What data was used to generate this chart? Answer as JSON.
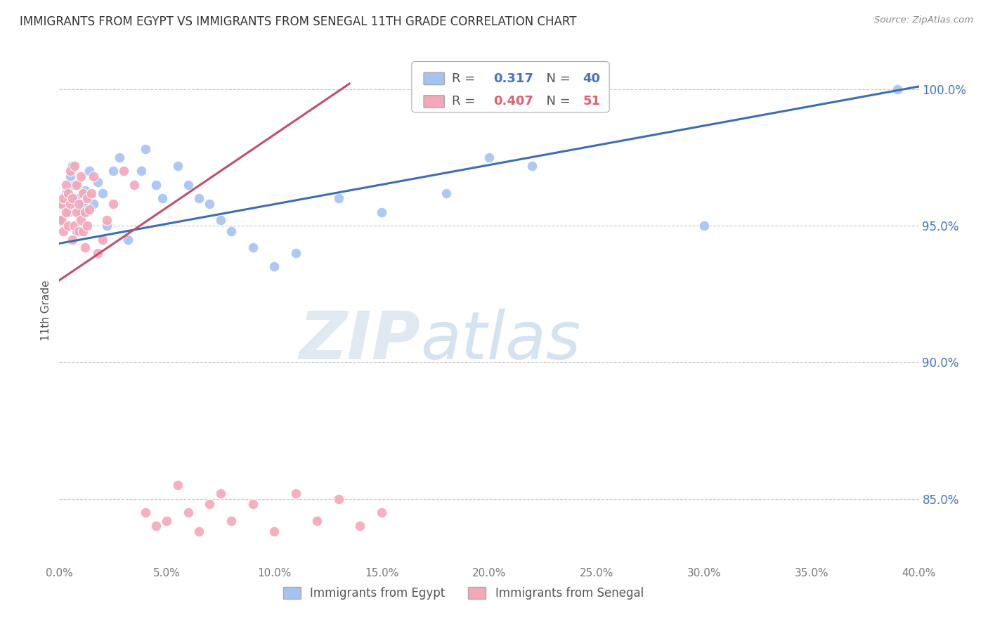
{
  "title": "IMMIGRANTS FROM EGYPT VS IMMIGRANTS FROM SENEGAL 11TH GRADE CORRELATION CHART",
  "source": "Source: ZipAtlas.com",
  "ylabel": "11th Grade",
  "legend_egypt": "Immigrants from Egypt",
  "legend_senegal": "Immigrants from Senegal",
  "R_egypt": 0.317,
  "N_egypt": 40,
  "R_senegal": 0.407,
  "N_senegal": 51,
  "color_egypt": "#a4c2f4",
  "color_senegal": "#f4a7b9",
  "color_egypt_line": "#3d6db5",
  "color_senegal_line": "#c0506a",
  "xlim": [
    0.0,
    0.4
  ],
  "ylim": [
    0.826,
    1.012
  ],
  "yticks": [
    0.85,
    0.9,
    0.95,
    1.0
  ],
  "xticks": [
    0.0,
    0.05,
    0.1,
    0.15,
    0.2,
    0.25,
    0.3,
    0.35,
    0.4
  ],
  "egypt_x": [
    0.001,
    0.002,
    0.003,
    0.004,
    0.005,
    0.006,
    0.007,
    0.008,
    0.009,
    0.01,
    0.011,
    0.012,
    0.014,
    0.016,
    0.018,
    0.02,
    0.022,
    0.025,
    0.028,
    0.032,
    0.038,
    0.04,
    0.045,
    0.048,
    0.055,
    0.06,
    0.065,
    0.07,
    0.075,
    0.08,
    0.09,
    0.1,
    0.11,
    0.13,
    0.15,
    0.18,
    0.2,
    0.22,
    0.3,
    0.39
  ],
  "egypt_y": [
    0.952,
    0.958,
    0.962,
    0.955,
    0.968,
    0.972,
    0.965,
    0.948,
    0.96,
    0.955,
    0.958,
    0.963,
    0.97,
    0.958,
    0.966,
    0.962,
    0.95,
    0.97,
    0.975,
    0.945,
    0.97,
    0.978,
    0.965,
    0.96,
    0.972,
    0.965,
    0.96,
    0.958,
    0.952,
    0.948,
    0.942,
    0.935,
    0.94,
    0.96,
    0.955,
    0.962,
    0.975,
    0.972,
    0.95,
    1.0
  ],
  "senegal_x": [
    0.001,
    0.001,
    0.002,
    0.002,
    0.003,
    0.003,
    0.004,
    0.004,
    0.005,
    0.005,
    0.006,
    0.006,
    0.007,
    0.007,
    0.008,
    0.008,
    0.009,
    0.009,
    0.01,
    0.01,
    0.011,
    0.011,
    0.012,
    0.012,
    0.013,
    0.013,
    0.014,
    0.015,
    0.016,
    0.018,
    0.02,
    0.022,
    0.025,
    0.03,
    0.035,
    0.04,
    0.045,
    0.05,
    0.055,
    0.06,
    0.065,
    0.07,
    0.075,
    0.08,
    0.09,
    0.1,
    0.11,
    0.12,
    0.13,
    0.14,
    0.15
  ],
  "senegal_y": [
    0.958,
    0.952,
    0.96,
    0.948,
    0.965,
    0.955,
    0.962,
    0.95,
    0.97,
    0.958,
    0.945,
    0.96,
    0.972,
    0.95,
    0.955,
    0.965,
    0.948,
    0.958,
    0.952,
    0.968,
    0.962,
    0.948,
    0.955,
    0.942,
    0.96,
    0.95,
    0.956,
    0.962,
    0.968,
    0.94,
    0.945,
    0.952,
    0.958,
    0.97,
    0.965,
    0.845,
    0.84,
    0.842,
    0.855,
    0.845,
    0.838,
    0.848,
    0.852,
    0.842,
    0.848,
    0.838,
    0.852,
    0.842,
    0.85,
    0.84,
    0.845
  ],
  "watermark_zip": "ZIP",
  "watermark_atlas": "atlas",
  "background_color": "#ffffff",
  "grid_color": "#c8c8c8",
  "title_fontsize": 12,
  "right_axis_color": "#4472c4",
  "legend_R_color_egypt": "#4472c4",
  "legend_R_color_senegal": "#e06070"
}
